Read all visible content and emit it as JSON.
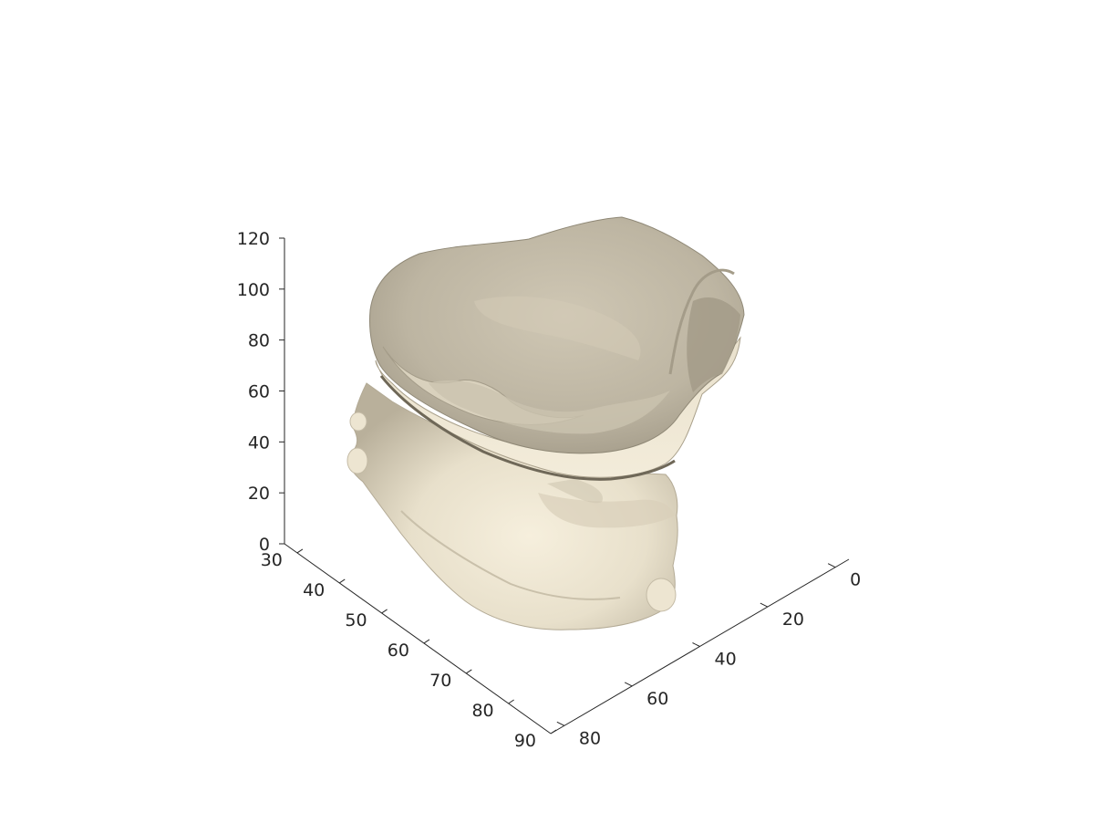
{
  "chart_data": {
    "type": "surface-3d",
    "title": "",
    "xlabel": "",
    "ylabel": "",
    "zlabel": "",
    "grid": false,
    "legend": "none",
    "surface_color": "#efe8d6",
    "axis_color": "#262626",
    "z_axis": {
      "ticks": [
        0,
        20,
        40,
        60,
        80,
        100,
        120
      ],
      "labels": [
        "0",
        "20",
        "40",
        "60",
        "80",
        "100",
        "120"
      ],
      "range": [
        0,
        120
      ]
    },
    "left_axis": {
      "ticks": [
        30,
        40,
        50,
        60,
        70,
        80,
        90
      ],
      "labels": [
        "30",
        "40",
        "50",
        "60",
        "70",
        "80",
        "90"
      ],
      "range": [
        27,
        90
      ]
    },
    "right_axis": {
      "ticks": [
        0,
        20,
        40,
        60,
        80
      ],
      "labels": [
        "0",
        "20",
        "40",
        "60",
        "80"
      ],
      "range": [
        -4,
        84
      ]
    }
  }
}
